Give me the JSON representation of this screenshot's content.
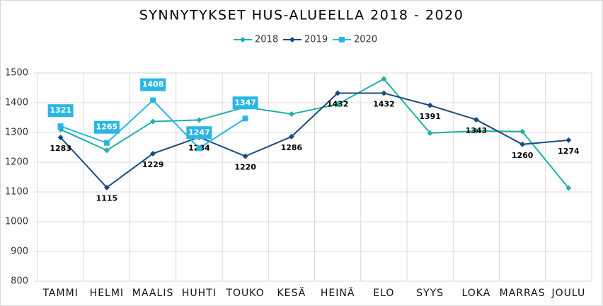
{
  "chart_data": {
    "type": "line",
    "title": "SYNNYTYKSET HUS-ALUEELLA 2018 - 2020",
    "categories": [
      "TAMMI",
      "HELMI",
      "MAALIS",
      "HUHTI",
      "TOUKO",
      "KESÄ",
      "HEINÄ",
      "ELO",
      "SYYS",
      "LOKA",
      "MARRAS",
      "JOULU"
    ],
    "series": [
      {
        "name": "2018",
        "color": "#1fb0a8",
        "marker": "diamond",
        "values": [
          1310,
          1240,
          1337,
          1342,
          1385,
          1362,
          1395,
          1480,
          1298,
          1305,
          1303,
          1113
        ]
      },
      {
        "name": "2019",
        "color": "#1a4c80",
        "marker": "diamond",
        "labels": true,
        "values": [
          1283,
          1115,
          1229,
          1284,
          1220,
          1286,
          1432,
          1432,
          1391,
          1343,
          1260,
          1274
        ]
      },
      {
        "name": "2020",
        "color": "#29b6e6",
        "marker": "square",
        "labels": true,
        "boxed": true,
        "values": [
          1321,
          1265,
          1408,
          1247,
          1347,
          null,
          null,
          null,
          null,
          null,
          null,
          null
        ]
      }
    ],
    "ylim": [
      800,
      1500
    ],
    "yticks": [
      800,
      900,
      1000,
      1100,
      1200,
      1300,
      1400,
      1500
    ],
    "grid": true,
    "legend": "top"
  }
}
